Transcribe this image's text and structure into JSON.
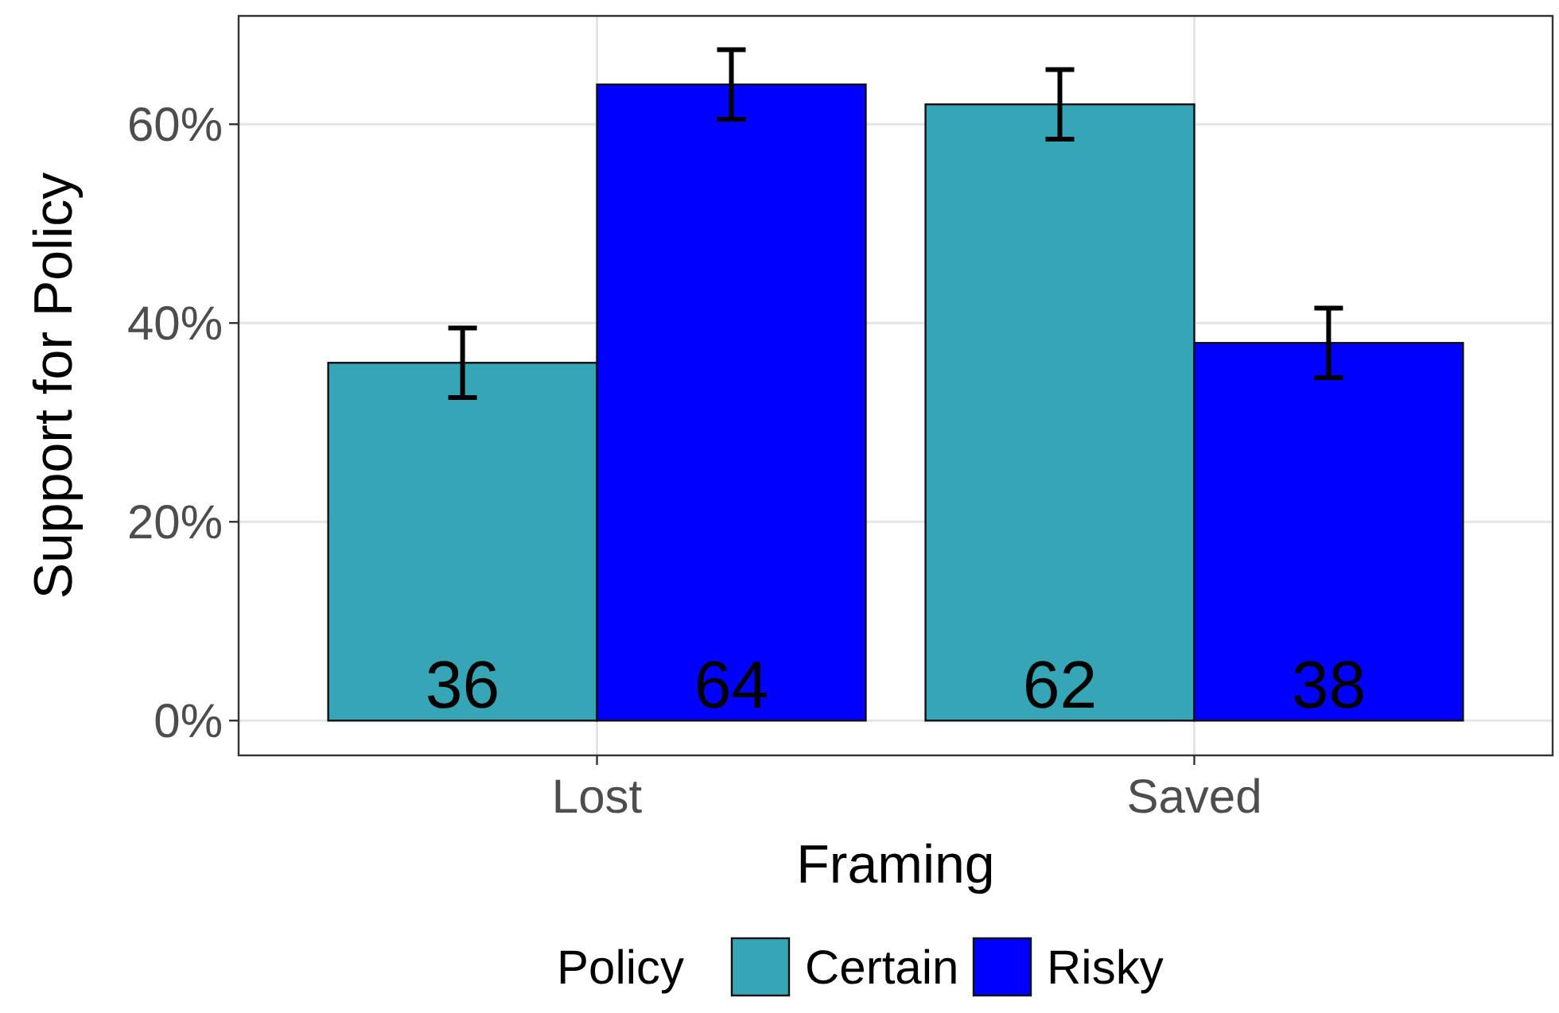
{
  "chart_data": {
    "type": "bar",
    "xlabel": "Framing",
    "ylabel": "Support for Policy",
    "legend_title": "Policy",
    "categories": [
      "Lost",
      "Saved"
    ],
    "series": [
      {
        "name": "Certain",
        "color": "#36a5b6",
        "values": [
          36,
          62
        ],
        "errors": [
          3.5,
          3.5
        ]
      },
      {
        "name": "Risky",
        "color": "#0000ff",
        "values": [
          64,
          38
        ],
        "errors": [
          3.5,
          3.5
        ]
      }
    ],
    "ylim": [
      -3.5,
      70.9
    ],
    "yticks": [
      {
        "value": 0,
        "label": "0%"
      },
      {
        "value": 20,
        "label": "20%"
      },
      {
        "value": 40,
        "label": "40%"
      },
      {
        "value": 60,
        "label": "60%"
      }
    ],
    "grid": true,
    "legend": "bottom",
    "data_labels": true
  }
}
